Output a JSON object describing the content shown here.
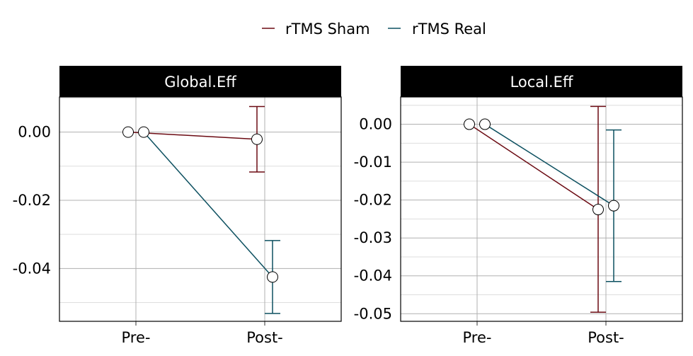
{
  "legend": {
    "entries": [
      {
        "label": "rTMS Sham",
        "color": "#6b0a12"
      },
      {
        "label": "rTMS Real",
        "color": "#0d5060"
      }
    ]
  },
  "chart_data": [
    {
      "type": "line",
      "title": "Global.Eff",
      "categories": [
        "Pre-",
        "Post-"
      ],
      "ylim": [
        -0.0555,
        0.0103
      ],
      "yticks": [
        0.0,
        -0.02,
        -0.04
      ],
      "ytick_labels": [
        "0.00",
        "-0.02",
        "-0.04"
      ],
      "grid": true,
      "series": [
        {
          "name": "rTMS Sham",
          "color": "#6b0a12",
          "values": [
            0.0,
            -0.0021
          ],
          "error_low": [
            0.0,
            -0.0117
          ],
          "error_high": [
            0.0,
            0.0075
          ]
        },
        {
          "name": "rTMS Real",
          "color": "#0d5060",
          "values": [
            0.0,
            -0.0425
          ],
          "error_low": [
            0.0,
            -0.0532
          ],
          "error_high": [
            0.0,
            -0.0318
          ]
        }
      ]
    },
    {
      "type": "line",
      "title": "Local.Eff",
      "categories": [
        "Pre-",
        "Post-"
      ],
      "ylim": [
        -0.052,
        0.0072
      ],
      "yticks": [
        0.0,
        -0.01,
        -0.02,
        -0.03,
        -0.04,
        -0.05
      ],
      "ytick_labels": [
        "0.00",
        "-0.01",
        "-0.02",
        "-0.03",
        "-0.04",
        "-0.05"
      ],
      "grid": true,
      "series": [
        {
          "name": "rTMS Sham",
          "color": "#6b0a12",
          "values": [
            0.0,
            -0.0225
          ],
          "error_low": [
            0.0,
            -0.0496
          ],
          "error_high": [
            0.0,
            0.0047
          ]
        },
        {
          "name": "rTMS Real",
          "color": "#0d5060",
          "values": [
            0.0,
            -0.0215
          ],
          "error_low": [
            0.0,
            -0.0415
          ],
          "error_high": [
            0.0,
            -0.0015
          ]
        }
      ]
    }
  ]
}
